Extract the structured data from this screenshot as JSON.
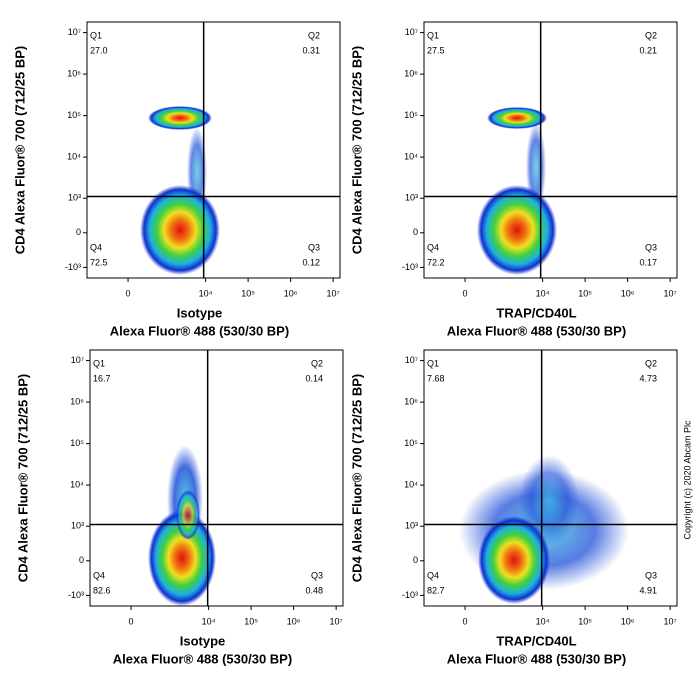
{
  "chart_data": [
    {
      "type": "quadrant",
      "xlabel": [
        "Isotype",
        "Alexa Fluor® 488  (530/30 BP)"
      ],
      "ylabel": "CD4 Alexa Fluor® 700  (712/25 BP)",
      "quadrants": [
        "Q1",
        "Q2",
        "Q3",
        "Q4"
      ],
      "values": [
        27.0,
        0.31,
        0.12,
        72.5
      ],
      "value_labels": [
        "27.0",
        "0.31",
        "0.12",
        "72.5"
      ],
      "gate": {
        "x": 9000,
        "y": 1100
      },
      "xlim": [
        -1370,
        14500000
      ],
      "ylim": [
        -1830,
        18000000
      ],
      "xticks": [
        0,
        {
          "value": 10000,
          "label": "10⁴"
        },
        {
          "value": 100000,
          "label": "10⁵"
        },
        {
          "value": 1000000,
          "label": "10⁶"
        },
        {
          "value": 10000000,
          "label": "10⁷"
        }
      ],
      "yticks": [
        {
          "value": -1000,
          "label": "-10³"
        },
        0,
        {
          "value": 1000,
          "label": "10³"
        },
        {
          "value": 10000,
          "label": "10⁴"
        },
        {
          "value": 100000,
          "label": "10⁵"
        },
        {
          "value": 1000000,
          "label": "10⁶"
        },
        {
          "value": 10000000,
          "label": "10⁷"
        }
      ]
    },
    {
      "type": "quadrant",
      "xlabel": [
        "TRAP/CD40L",
        "Alexa Fluor® 488  (530/30 BP)"
      ],
      "ylabel": "CD4 Alexa Fluor® 700  (712/25 BP)",
      "quadrants": [
        "Q1",
        "Q2",
        "Q3",
        "Q4"
      ],
      "values": [
        27.5,
        0.21,
        0.17,
        72.2
      ],
      "value_labels": [
        "27.5",
        "0.21",
        "0.17",
        "72.2"
      ],
      "gate": {
        "x": 9000,
        "y": 1100
      },
      "xlim": [
        -1370,
        14500000
      ],
      "ylim": [
        -1830,
        18000000
      ],
      "xticks": [
        0,
        {
          "value": 10000,
          "label": "10⁴"
        },
        {
          "value": 100000,
          "label": "10⁵"
        },
        {
          "value": 1000000,
          "label": "10⁶"
        },
        {
          "value": 10000000,
          "label": "10⁷"
        }
      ],
      "yticks": [
        {
          "value": -1000,
          "label": "-10³"
        },
        0,
        {
          "value": 1000,
          "label": "10³"
        },
        {
          "value": 10000,
          "label": "10⁴"
        },
        {
          "value": 100000,
          "label": "10⁵"
        },
        {
          "value": 1000000,
          "label": "10⁶"
        },
        {
          "value": 10000000,
          "label": "10⁷"
        }
      ]
    },
    {
      "type": "quadrant",
      "xlabel": [
        "Isotype",
        "Alexa Fluor® 488  (530/30 BP)"
      ],
      "ylabel": "CD4 Alexa Fluor® 700  (712/25 BP)",
      "quadrants": [
        "Q1",
        "Q2",
        "Q3",
        "Q4"
      ],
      "values": [
        16.7,
        0.14,
        0.48,
        82.6
      ],
      "value_labels": [
        "16.7",
        "0.14",
        "0.48",
        "82.6"
      ],
      "gate": {
        "x": 9500,
        "y": 1100
      },
      "xlim": [
        -1370,
        14500000
      ],
      "ylim": [
        -1830,
        18000000
      ],
      "xticks": [
        0,
        {
          "value": 10000,
          "label": "10⁴"
        },
        {
          "value": 100000,
          "label": "10⁵"
        },
        {
          "value": 1000000,
          "label": "10⁶"
        },
        {
          "value": 10000000,
          "label": "10⁷"
        }
      ],
      "yticks": [
        {
          "value": -1000,
          "label": "-10³"
        },
        0,
        {
          "value": 1000,
          "label": "10³"
        },
        {
          "value": 10000,
          "label": "10⁴"
        },
        {
          "value": 100000,
          "label": "10⁵"
        },
        {
          "value": 1000000,
          "label": "10⁶"
        },
        {
          "value": 10000000,
          "label": "10⁷"
        }
      ]
    },
    {
      "type": "quadrant",
      "xlabel": [
        "TRAP/CD40L",
        "Alexa Fluor® 488  (530/30 BP)"
      ],
      "ylabel": "CD4 Alexa Fluor® 700  (712/25 BP)",
      "quadrants": [
        "Q1",
        "Q2",
        "Q3",
        "Q4"
      ],
      "values": [
        7.68,
        4.73,
        4.91,
        82.7
      ],
      "value_labels": [
        "7.68",
        "4.73",
        "4.91",
        "82.7"
      ],
      "gate": {
        "x": 9500,
        "y": 1100
      },
      "xlim": [
        -1370,
        14500000
      ],
      "ylim": [
        -1830,
        18000000
      ],
      "xticks": [
        0,
        {
          "value": 10000,
          "label": "10⁴"
        },
        {
          "value": 100000,
          "label": "10⁵"
        },
        {
          "value": 1000000,
          "label": "10⁶"
        },
        {
          "value": 10000000,
          "label": "10⁷"
        }
      ],
      "yticks": [
        {
          "value": -1000,
          "label": "-10³"
        },
        0,
        {
          "value": 1000,
          "label": "10³"
        },
        {
          "value": 10000,
          "label": "10⁴"
        },
        {
          "value": 100000,
          "label": "10⁵"
        },
        {
          "value": 1000000,
          "label": "10⁶"
        },
        {
          "value": 10000000,
          "label": "10⁷"
        }
      ]
    }
  ],
  "copyright": "Copyright (c) 2020 Abcam Plc"
}
